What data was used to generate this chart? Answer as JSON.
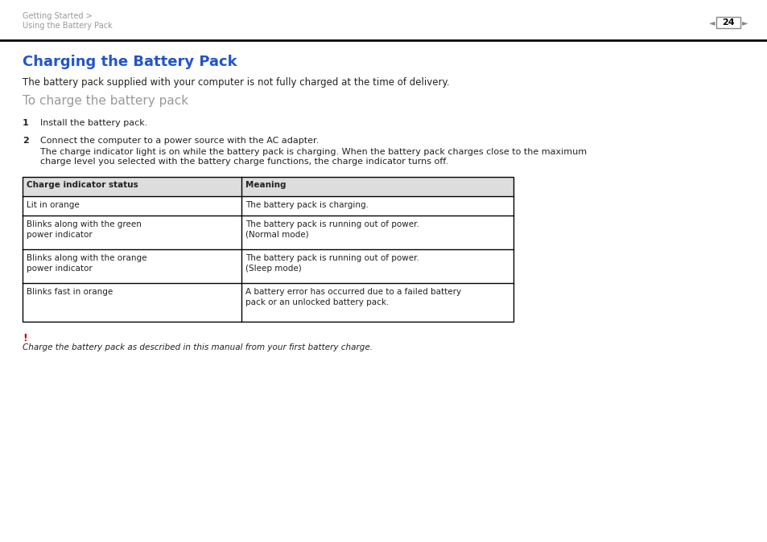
{
  "bg_color": "#ffffff",
  "header_text_color": "#999999",
  "header_line_color": "#000000",
  "breadcrumb_line1": "Getting Started >",
  "breadcrumb_line2": "Using the Battery Pack",
  "page_number": "24",
  "title": "Charging the Battery Pack",
  "title_color": "#2255cc",
  "title_fontsize": 13,
  "intro_text": "The battery pack supplied with your computer is not fully charged at the time of delivery.",
  "intro_fontsize": 8.5,
  "subtitle": "To charge the battery pack",
  "subtitle_color": "#999999",
  "subtitle_fontsize": 11,
  "step1_num": "1",
  "step1_text": "Install the battery pack.",
  "step2_num": "2",
  "step2_text_line1": "Connect the computer to a power source with the AC adapter.",
  "step2_text_line2": "The charge indicator light is on while the battery pack is charging. When the battery pack charges close to the maximum",
  "step2_text_line3": "charge level you selected with the battery charge functions, the charge indicator turns off.",
  "table_header_col1": "Charge indicator status",
  "table_header_col2": "Meaning",
  "table_rows": [
    [
      "Lit in orange",
      "The battery pack is charging."
    ],
    [
      "Blinks along with the green\npower indicator",
      "The battery pack is running out of power.\n(Normal mode)"
    ],
    [
      "Blinks along with the orange\npower indicator",
      "The battery pack is running out of power.\n(Sleep mode)"
    ],
    [
      "Blinks fast in orange",
      "A battery error has occurred due to a failed battery\npack or an unlocked battery pack."
    ]
  ],
  "table_border_color": "#000000",
  "table_header_bg": "#dddddd",
  "exclamation_color": "#cc0000",
  "note_text": "Charge the battery pack as described in this manual from your first battery charge.",
  "text_color": "#222222",
  "body_fontsize": 7.5,
  "header_fontsize": 7,
  "step_fontsize": 8,
  "note_fontsize": 7.5
}
